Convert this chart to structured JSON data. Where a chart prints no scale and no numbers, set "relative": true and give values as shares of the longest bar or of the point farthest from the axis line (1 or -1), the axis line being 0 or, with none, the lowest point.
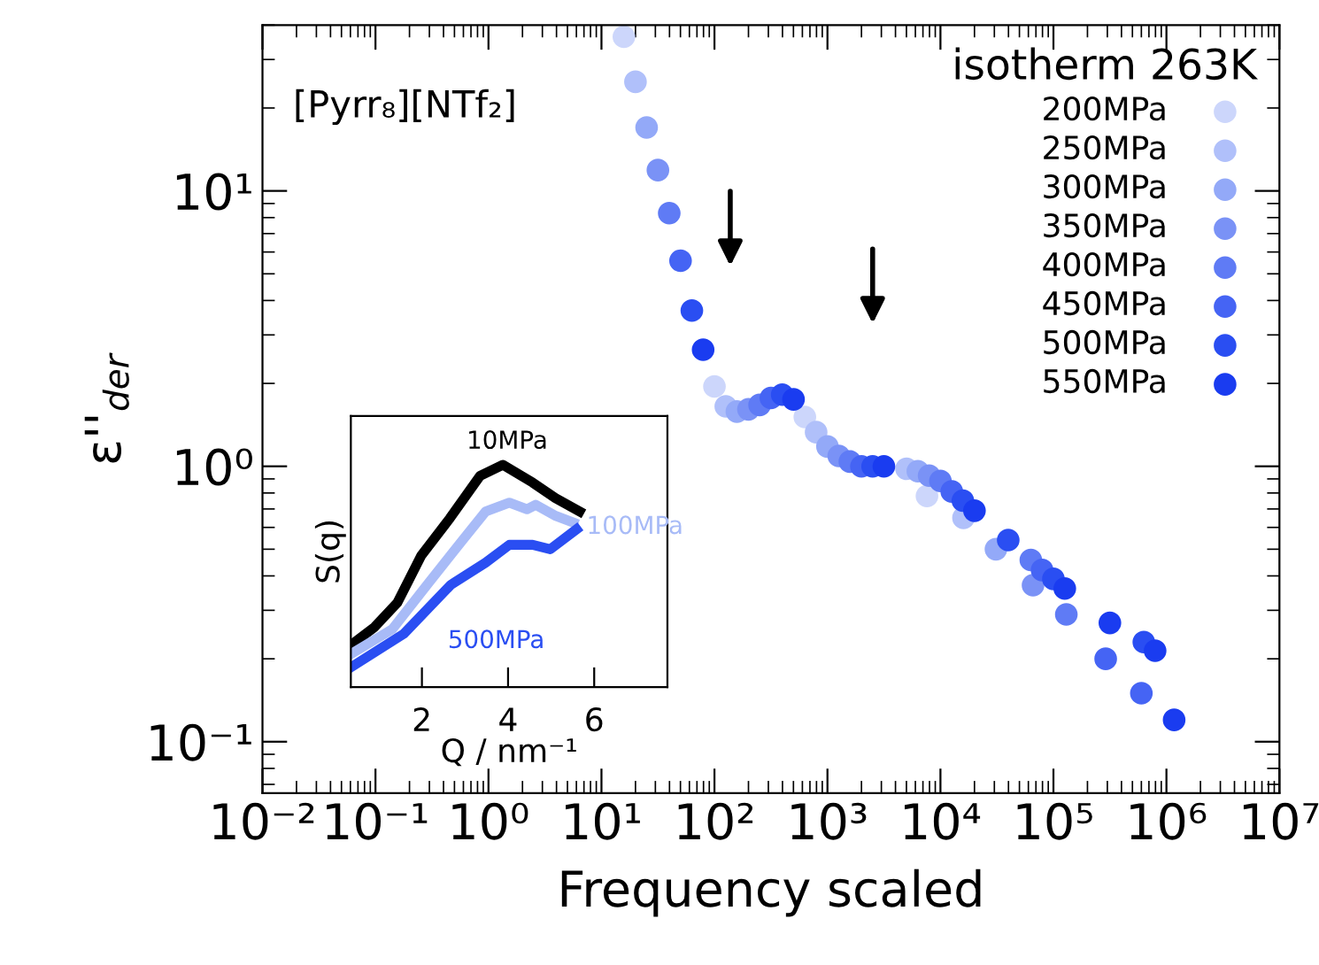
{
  "chart_data": [
    {
      "type": "scatter",
      "xlabel": "Frequency scaled",
      "ylabel": "ε''$_{der}$",
      "legend_title": "isotherm 263K",
      "legend": "top right",
      "log": "xy",
      "marker": "circle",
      "grid": false,
      "annotations": [
        "[Pyrr₈][NTf₂]"
      ],
      "xlim": [
        0.01,
        10000000
      ],
      "ylim": [
        0.065,
        40
      ],
      "xticks": [
        {
          "value": 0.01,
          "label": "10⁻²"
        },
        {
          "value": 0.1,
          "label": "10⁻¹"
        },
        {
          "value": 1,
          "label": "10⁰"
        },
        {
          "value": 10,
          "label": "10¹"
        },
        {
          "value": 100,
          "label": "10²"
        },
        {
          "value": 1000,
          "label": "10³"
        },
        {
          "value": 10000,
          "label": "10⁴"
        },
        {
          "value": 100000,
          "label": "10⁵"
        },
        {
          "value": 1000000,
          "label": "10⁶"
        },
        {
          "value": 10000000,
          "label": "10⁷"
        }
      ],
      "yticks": [
        {
          "value": 0.1,
          "label": "10⁻¹"
        },
        {
          "value": 1,
          "label": "10⁰"
        },
        {
          "value": 10,
          "label": "10¹"
        }
      ],
      "series": [
        {
          "name": "200MPa",
          "color": "#ccd6fb",
          "x": [
            15.8,
            100,
            631,
            7600
          ],
          "values": [
            36.3,
            1.95,
            1.51,
            0.78
          ]
        },
        {
          "name": "250MPa",
          "color": "#b0c0fa",
          "x": [
            20,
            126,
            794,
            5010,
            16000
          ],
          "values": [
            24.9,
            1.65,
            1.33,
            0.98,
            0.65
          ]
        },
        {
          "name": "300MPa",
          "color": "#93a9f8",
          "x": [
            25.1,
            158,
            1000,
            6310,
            31000
          ],
          "values": [
            17.0,
            1.58,
            1.18,
            0.96,
            0.5
          ]
        },
        {
          "name": "350MPa",
          "color": "#7a92f6",
          "x": [
            31.6,
            200,
            1260,
            7940,
            66000
          ],
          "values": [
            11.9,
            1.61,
            1.09,
            0.925,
            0.37
          ]
        },
        {
          "name": "400MPa",
          "color": "#5f7bf5",
          "x": [
            39.8,
            251,
            1580,
            10000,
            63100,
            130000
          ],
          "values": [
            8.3,
            1.67,
            1.04,
            0.885,
            0.457,
            0.29
          ]
        },
        {
          "name": "450MPa",
          "color": "#4564f4",
          "x": [
            50.1,
            316,
            2000,
            12600,
            79400,
            290000,
            600000
          ],
          "values": [
            5.58,
            1.77,
            1.0,
            0.81,
            0.42,
            0.2,
            0.15
          ]
        },
        {
          "name": "500MPa",
          "color": "#2a4ef2",
          "x": [
            63.1,
            398,
            2510,
            15800,
            39800,
            100000,
            631000
          ],
          "values": [
            3.68,
            1.82,
            1.0,
            0.75,
            0.54,
            0.39,
            0.23
          ]
        },
        {
          "name": "550MPa",
          "color": "#1a3cf0",
          "x": [
            79.4,
            501,
            3160,
            20000,
            126000,
            316000,
            794000,
            1170000
          ],
          "values": [
            2.65,
            1.75,
            1.0,
            0.69,
            0.36,
            0.27,
            0.214,
            0.12
          ]
        }
      ]
    },
    {
      "type": "line",
      "xlabel": "Q / nm⁻¹",
      "ylabel": "S(q)",
      "relative": true,
      "xlim": [
        0.35,
        7.7
      ],
      "xticks": [
        2,
        4,
        6
      ],
      "grid": false,
      "legend": false,
      "series": [
        {
          "name": "10MPa",
          "color": "#000000",
          "x": [
            0.36,
            0.9,
            1.43,
            1.98,
            2.65,
            3.35,
            3.88,
            4.57,
            5.1,
            5.66
          ],
          "values": [
            0.19,
            0.27,
            0.38,
            0.59,
            0.76,
            0.95,
            1.0,
            0.92,
            0.85,
            0.79
          ]
        },
        {
          "name": "100MPa",
          "color": "#a8bbf7",
          "x": [
            0.36,
            1.31,
            2.12,
            2.94,
            3.48,
            4.03,
            4.44,
            4.64,
            5.11,
            5.52
          ],
          "values": [
            0.15,
            0.26,
            0.46,
            0.66,
            0.79,
            0.83,
            0.8,
            0.82,
            0.77,
            0.74
          ]
        },
        {
          "name": "500MPa",
          "color": "#2a4ef2",
          "x": [
            0.36,
            1.58,
            2.67,
            3.48,
            4.03,
            4.57,
            4.98,
            5.59
          ],
          "values": [
            0.09,
            0.24,
            0.46,
            0.56,
            0.64,
            0.64,
            0.62,
            0.71
          ]
        }
      ]
    }
  ]
}
